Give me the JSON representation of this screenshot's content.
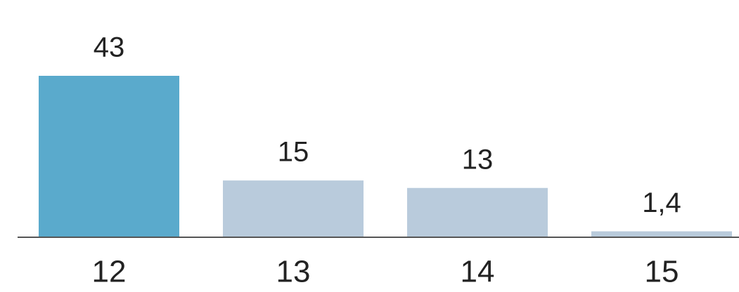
{
  "chart_data": {
    "type": "bar",
    "categories": [
      "12",
      "13",
      "14",
      "15"
    ],
    "values": [
      43,
      15,
      13,
      1.4
    ],
    "value_labels": [
      "43",
      "15",
      "13",
      "1,4"
    ],
    "colors": [
      "#5aaacc",
      "#b9cbdc",
      "#b9cbdc",
      "#b9cbdc"
    ]
  }
}
